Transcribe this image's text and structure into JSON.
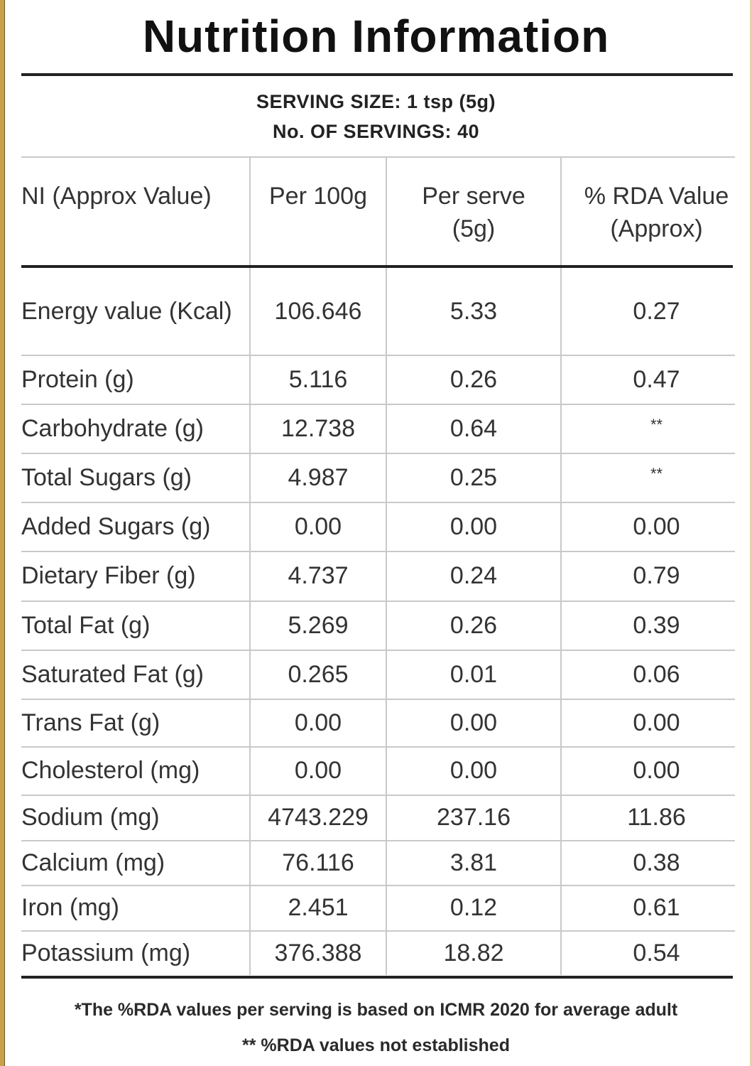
{
  "title": "Nutrition Information",
  "serving": {
    "size": "SERVING SIZE: 1 tsp (5g)",
    "count": "No. OF SERVINGS: 40"
  },
  "table": {
    "headers": [
      "NI (Approx Value)",
      "Per 100g",
      "Per serve (5g)",
      "% RDA Value (Approx)"
    ],
    "rows": [
      [
        "Energy value (Kcal)",
        "106.646",
        "5.33",
        "0.27"
      ],
      [
        "Protein (g)",
        "5.116",
        "0.26",
        "0.47"
      ],
      [
        "Carbohydrate (g)",
        "12.738",
        "0.64",
        "**"
      ],
      [
        "Total Sugars (g)",
        "4.987",
        "0.25",
        "**"
      ],
      [
        "Added Sugars (g)",
        "0.00",
        "0.00",
        "0.00"
      ],
      [
        "Dietary Fiber (g)",
        "4.737",
        "0.24",
        "0.79"
      ],
      [
        "Total Fat (g)",
        "5.269",
        "0.26",
        "0.39"
      ],
      [
        "Saturated Fat (g)",
        "0.265",
        "0.01",
        "0.06"
      ],
      [
        "Trans Fat (g)",
        "0.00",
        "0.00",
        "0.00"
      ],
      [
        "Cholesterol (mg)",
        "0.00",
        "0.00",
        "0.00"
      ],
      [
        "Sodium (mg)",
        "4743.229",
        "237.16",
        "11.86"
      ],
      [
        "Calcium (mg)",
        "76.116",
        "3.81",
        "0.38"
      ],
      [
        "Iron (mg)",
        "2.451",
        "0.12",
        "0.61"
      ],
      [
        "Potassium (mg)",
        "376.388",
        "18.82",
        "0.54"
      ]
    ]
  },
  "footnotes": {
    "rda_basis": "*The %RDA values per serving is based on ICMR 2020 for average adult",
    "not_established": "** %RDA values not established"
  },
  "colors": {
    "text": "#333333",
    "rule": "#222222",
    "grid": "#c9c9c9",
    "frame": "#c8a24a"
  }
}
